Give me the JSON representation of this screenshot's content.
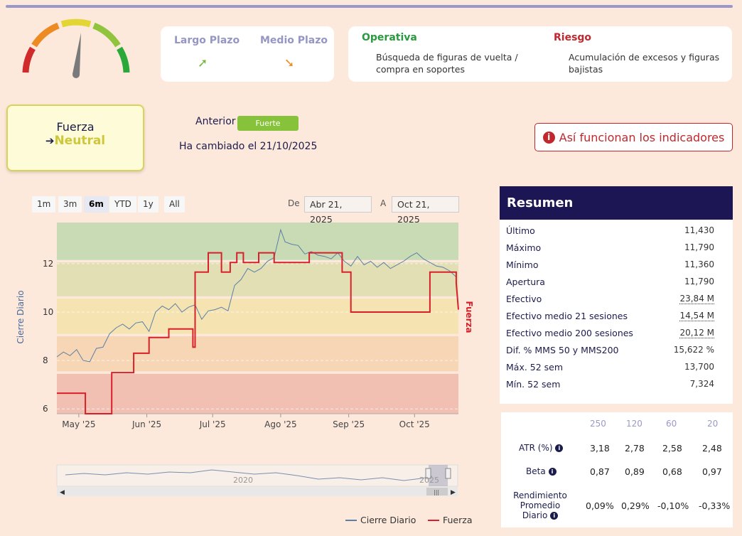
{
  "trends": {
    "largo": {
      "label": "Largo Plazo",
      "arrow": "➚",
      "color": "#6fb83a"
    },
    "medio": {
      "label": "Medio Plazo",
      "arrow": "➘",
      "color": "#f08a1e"
    }
  },
  "operativa": {
    "left_title": "Operativa",
    "left_text_1": "Búsqueda de figuras de vuelta /",
    "left_text_2": "compra en soportes",
    "right_title": "Riesgo",
    "right_text_1": "Acumulación de excesos y figuras",
    "right_text_2": "bajistas"
  },
  "fuerza": {
    "title": "Fuerza",
    "arrow": "➔",
    "value": "Neutral"
  },
  "anterior": {
    "label": "Anterior",
    "badge": "Fuerte",
    "cambio": "Ha cambiado el 21/10/2025"
  },
  "info_button": {
    "icon": "i",
    "label": "Así funcionan los indicadores"
  },
  "range_buttons": [
    "1m",
    "3m",
    "6m",
    "YTD",
    "1y",
    "All"
  ],
  "range_active": "6m",
  "date_range": {
    "from_label": "De",
    "from": "Abr 21, 2025",
    "to_label": "A",
    "to": "Oct 21, 2025"
  },
  "navigator_label": "2020",
  "navigator_label_2": "2025",
  "legend": {
    "series1": "Cierre Diario",
    "series2": "Fuerza"
  },
  "resumen": {
    "title": "Resumen",
    "rows": [
      {
        "k": "Último",
        "v": "11,430"
      },
      {
        "k": "Máximo",
        "v": "11,790"
      },
      {
        "k": "Mínimo",
        "v": "11,360"
      },
      {
        "k": "Apertura",
        "v": "11,790"
      },
      {
        "k": "Efectivo",
        "v": "23,84 M"
      },
      {
        "k": "Efectivo medio 21 sesiones",
        "v": "14,54 M"
      },
      {
        "k": "Efectivo medio 200 sesiones",
        "v": "20,12 M"
      },
      {
        "k": "Dif. % MMS 50 y MMS200",
        "v": "15,622 %"
      },
      {
        "k": "Máx. 52 sem",
        "v": "13,700"
      },
      {
        "k": "Mín. 52 sem",
        "v": "7,324"
      }
    ]
  },
  "stats": {
    "periods": [
      "250",
      "120",
      "60",
      "20"
    ],
    "atr_label": "ATR (%)",
    "atr": [
      "3,18",
      "2,78",
      "2,58",
      "2,48"
    ],
    "beta_label": "Beta",
    "beta": [
      "0,87",
      "0,89",
      "0,68",
      "0,97"
    ],
    "rend_label_1": "Rendimiento",
    "rend_label_2": "Promedio",
    "rend_label_3": "Diario",
    "rend": [
      "0,09%",
      "0,29%",
      "-0,10%",
      "-0,33%"
    ]
  },
  "chart_data": {
    "type": "line",
    "ylabel": "Cierre Diario",
    "ylabel_right": "Fuerza",
    "ylim": [
      5.8,
      13.7
    ],
    "yticks": [
      6,
      8,
      10,
      12
    ],
    "xticks": [
      "May '25",
      "Jun '25",
      "Jul '25",
      "Ago '25",
      "Sep '25",
      "Oct '25"
    ],
    "x_range": [
      0,
      183
    ],
    "xtick_pos": [
      10,
      41,
      71,
      102,
      133,
      163
    ],
    "bands": [
      {
        "from": 5.8,
        "to": 7.45,
        "color": "#f2c0b2"
      },
      {
        "from": 7.55,
        "to": 9.0,
        "color": "#f7d6b5"
      },
      {
        "from": 9.1,
        "to": 10.55,
        "color": "#f6e3b2"
      },
      {
        "from": 10.65,
        "to": 12.05,
        "color": "#e3dfb5"
      },
      {
        "from": 12.15,
        "to": 13.7,
        "color": "#c9dbb4"
      }
    ],
    "series": [
      {
        "name": "Cierre Diario",
        "color": "#5b7fa6",
        "points": [
          [
            0,
            8.15
          ],
          [
            3,
            8.35
          ],
          [
            6,
            8.2
          ],
          [
            9,
            8.45
          ],
          [
            12,
            8.0
          ],
          [
            15,
            7.95
          ],
          [
            18,
            8.5
          ],
          [
            21,
            8.55
          ],
          [
            24,
            9.1
          ],
          [
            27,
            9.35
          ],
          [
            30,
            9.5
          ],
          [
            33,
            9.3
          ],
          [
            36,
            9.55
          ],
          [
            39,
            9.6
          ],
          [
            42,
            9.2
          ],
          [
            45,
            10.0
          ],
          [
            48,
            10.25
          ],
          [
            51,
            10.1
          ],
          [
            54,
            10.35
          ],
          [
            57,
            10.0
          ],
          [
            60,
            10.2
          ],
          [
            63,
            10.3
          ],
          [
            66,
            9.7
          ],
          [
            69,
            10.05
          ],
          [
            72,
            10.1
          ],
          [
            75,
            10.2
          ],
          [
            78,
            10.05
          ],
          [
            81,
            11.1
          ],
          [
            84,
            11.35
          ],
          [
            87,
            11.8
          ],
          [
            90,
            11.65
          ],
          [
            93,
            11.8
          ],
          [
            96,
            12.1
          ],
          [
            99,
            12.25
          ],
          [
            102,
            13.4
          ],
          [
            104,
            12.9
          ],
          [
            107,
            12.8
          ],
          [
            110,
            12.75
          ],
          [
            113,
            12.4
          ],
          [
            116,
            12.5
          ],
          [
            119,
            12.35
          ],
          [
            122,
            12.3
          ],
          [
            125,
            12.2
          ],
          [
            128,
            12.45
          ],
          [
            131,
            12.1
          ],
          [
            134,
            11.9
          ],
          [
            137,
            12.3
          ],
          [
            140,
            11.95
          ],
          [
            143,
            12.1
          ],
          [
            146,
            11.85
          ],
          [
            149,
            12.05
          ],
          [
            152,
            11.8
          ],
          [
            155,
            11.95
          ],
          [
            158,
            12.1
          ],
          [
            161,
            12.3
          ],
          [
            164,
            12.45
          ],
          [
            167,
            12.2
          ],
          [
            170,
            12.05
          ],
          [
            173,
            11.9
          ],
          [
            176,
            11.85
          ],
          [
            179,
            11.7
          ],
          [
            182,
            11.45
          ]
        ]
      },
      {
        "name": "Fuerza",
        "color": "#d8202a",
        "points": [
          [
            0,
            6.65
          ],
          [
            13,
            6.65
          ],
          [
            13,
            5.8
          ],
          [
            25,
            5.8
          ],
          [
            25,
            7.5
          ],
          [
            35,
            7.5
          ],
          [
            35,
            8.3
          ],
          [
            42,
            8.3
          ],
          [
            42,
            8.95
          ],
          [
            51,
            8.95
          ],
          [
            51,
            9.3
          ],
          [
            62,
            9.3
          ],
          [
            62,
            8.55
          ],
          [
            63,
            8.55
          ],
          [
            63,
            11.65
          ],
          [
            69,
            11.65
          ],
          [
            69,
            12.45
          ],
          [
            75,
            12.45
          ],
          [
            75,
            11.65
          ],
          [
            79,
            11.65
          ],
          [
            79,
            12.05
          ],
          [
            82,
            12.05
          ],
          [
            82,
            12.45
          ],
          [
            85,
            12.45
          ],
          [
            85,
            12.05
          ],
          [
            92,
            12.05
          ],
          [
            92,
            12.45
          ],
          [
            99,
            12.45
          ],
          [
            99,
            12.05
          ],
          [
            115,
            12.05
          ],
          [
            115,
            12.45
          ],
          [
            130,
            12.45
          ],
          [
            130,
            11.65
          ],
          [
            134,
            11.65
          ],
          [
            134,
            10.0
          ],
          [
            170,
            10.0
          ],
          [
            170,
            11.65
          ],
          [
            182,
            11.65
          ],
          [
            182,
            11.2
          ],
          [
            183,
            10.1
          ]
        ]
      }
    ]
  }
}
